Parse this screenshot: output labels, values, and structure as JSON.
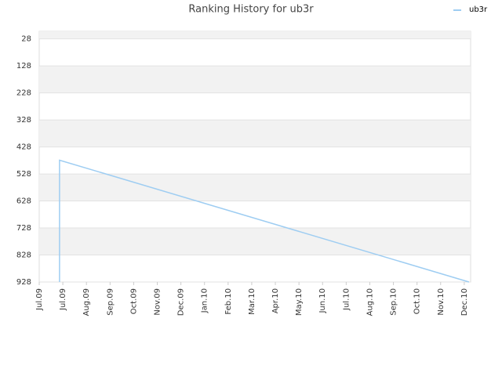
{
  "chart_data": {
    "type": "line",
    "title": "Ranking History for ub3r",
    "x": [
      0.86,
      0.86,
      18.2
    ],
    "series": [
      {
        "name": "ub3r",
        "color": "#9ecdf2",
        "values": [
          928,
          477,
          928
        ]
      }
    ],
    "xlim": [
      0,
      18.27
    ],
    "xticks": [
      {
        "value": 0,
        "label": "Jul.09"
      },
      {
        "value": 1,
        "label": "Jul.09"
      },
      {
        "value": 2,
        "label": "Aug.09"
      },
      {
        "value": 3,
        "label": "Sep.09"
      },
      {
        "value": 4,
        "label": "Oct.09"
      },
      {
        "value": 5,
        "label": "Nov.09"
      },
      {
        "value": 6,
        "label": "Dec.09"
      },
      {
        "value": 7,
        "label": "Jan.10"
      },
      {
        "value": 8,
        "label": "Feb.10"
      },
      {
        "value": 9,
        "label": "Mar.10"
      },
      {
        "value": 10,
        "label": "Apr.10"
      },
      {
        "value": 11,
        "label": "May.10"
      },
      {
        "value": 12,
        "label": "Jun.10"
      },
      {
        "value": 13,
        "label": "Jul.10"
      },
      {
        "value": 14,
        "label": "Aug.10"
      },
      {
        "value": 15,
        "label": "Sep.10"
      },
      {
        "value": 16,
        "label": "Oct.10"
      },
      {
        "value": 17,
        "label": "Nov.10"
      },
      {
        "value": 18,
        "label": "Dec.10"
      }
    ],
    "ylim": [
      0,
      928
    ],
    "yticks": [
      28,
      128,
      228,
      328,
      428,
      528,
      628,
      728,
      828,
      928
    ],
    "inverted": true,
    "grid": true,
    "legend": "top-right"
  }
}
